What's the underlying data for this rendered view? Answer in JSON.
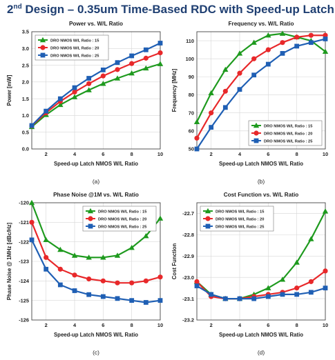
{
  "slide": {
    "title_prefix": "2",
    "title_sup": "nd",
    "title_rest": " Design – 0.35um Time-Based RDC with Speed-up Latch"
  },
  "colors": {
    "s15": "#1e9a1e",
    "s20": "#e8282a",
    "s25": "#1f5fb4"
  },
  "chart_data": [
    {
      "id": "power",
      "panel_label": "(a)",
      "type": "line",
      "title": "Power vs. W/L Ratio",
      "xlabel": "Speed-up Latch NMOS W/L Ratio",
      "ylabel": "Power [mW]",
      "xlim": [
        1,
        10
      ],
      "ylim": [
        0,
        3.5
      ],
      "xticks": [
        2,
        4,
        6,
        8,
        10
      ],
      "xtick_labels": [
        "2",
        "4",
        "6",
        "8",
        "10"
      ],
      "yticks": [
        0,
        0.5,
        1,
        1.5,
        2,
        2.5,
        3,
        3.5
      ],
      "ytick_labels": [
        "0.0",
        "0.5",
        "1.0",
        "1.5",
        "2.0",
        "2.5",
        "3.0",
        "3.5"
      ],
      "legend": "top-left",
      "grid": true,
      "x": [
        1,
        2,
        3,
        4,
        5,
        6,
        7,
        8,
        9,
        10
      ],
      "series": [
        {
          "name": "DRO NMOS W/L Ratio : 15",
          "color": "#1e9a1e",
          "marker": "triangle",
          "values": [
            0.66,
            1.02,
            1.32,
            1.55,
            1.76,
            1.95,
            2.11,
            2.26,
            2.41,
            2.54
          ]
        },
        {
          "name": "DRO NMOS W/L Ratio : 20",
          "color": "#e8282a",
          "marker": "circle",
          "values": [
            0.69,
            1.08,
            1.42,
            1.7,
            1.95,
            2.18,
            2.37,
            2.55,
            2.71,
            2.87
          ]
        },
        {
          "name": "DRO NMOS W/L Ratio : 25",
          "color": "#1f5fb4",
          "marker": "square",
          "values": [
            0.7,
            1.13,
            1.5,
            1.83,
            2.11,
            2.36,
            2.58,
            2.78,
            2.96,
            3.16
          ]
        }
      ]
    },
    {
      "id": "frequency",
      "panel_label": "(b)",
      "type": "line",
      "title": "Frequency vs. W/L Ratio",
      "xlabel": "Speed-up Latch NMOS W/L Ratio",
      "ylabel": "Frequency [MHz]",
      "xlim": [
        1,
        10
      ],
      "ylim": [
        50,
        115
      ],
      "xticks": [
        2,
        4,
        6,
        8,
        10
      ],
      "xtick_labels": [
        "2",
        "4",
        "6",
        "8",
        "10"
      ],
      "yticks": [
        50,
        60,
        70,
        80,
        90,
        100,
        110
      ],
      "ytick_labels": [
        "50",
        "60",
        "70",
        "80",
        "90",
        "100",
        "110"
      ],
      "legend": "bottom-right",
      "grid": true,
      "x": [
        1,
        2,
        3,
        4,
        5,
        6,
        7,
        8,
        9,
        10
      ],
      "series": [
        {
          "name": "DRO NMOS W/L Ratio : 15",
          "color": "#1e9a1e",
          "marker": "triangle",
          "values": [
            65,
            81,
            94,
            103,
            109,
            113,
            114,
            112,
            110,
            104
          ]
        },
        {
          "name": "DRO NMOS W/L Ratio : 20",
          "color": "#e8282a",
          "marker": "circle",
          "values": [
            56,
            70,
            82,
            92,
            100,
            105,
            109,
            112,
            113,
            113
          ]
        },
        {
          "name": "DRO NMOS W/L Ratio : 25",
          "color": "#1f5fb4",
          "marker": "square",
          "values": [
            50,
            62,
            73,
            83,
            91,
            97,
            103,
            107,
            109,
            111
          ]
        }
      ]
    },
    {
      "id": "phase_noise",
      "panel_label": "(c)",
      "type": "line",
      "title": "Phase Noise @1M vs. W/L Ratio",
      "xlabel": "Speed-up Latch NMOS W/L Ratio",
      "ylabel": "Phase Noise @ 1MHz [dBc/Hz]",
      "xlim": [
        1,
        10
      ],
      "ylim": [
        -126,
        -120
      ],
      "xticks": [
        2,
        4,
        6,
        8,
        10
      ],
      "xtick_labels": [
        "2",
        "4",
        "6",
        "8",
        "10"
      ],
      "yticks": [
        -126,
        -125,
        -124,
        -123,
        -122,
        -121,
        -120
      ],
      "ytick_labels": [
        "-126",
        "-125",
        "-124",
        "-123",
        "-122",
        "-121",
        "-120"
      ],
      "legend": "top-right",
      "grid": true,
      "x": [
        1,
        2,
        3,
        4,
        5,
        6,
        7,
        8,
        9,
        10
      ],
      "series": [
        {
          "name": "DRO NMOS W/L Ratio : 15",
          "color": "#1e9a1e",
          "marker": "triangle",
          "values": [
            -120.0,
            -121.9,
            -122.4,
            -122.7,
            -122.8,
            -122.8,
            -122.7,
            -122.3,
            -121.7,
            -120.8
          ]
        },
        {
          "name": "DRO NMOS W/L Ratio : 20",
          "color": "#e8282a",
          "marker": "circle",
          "values": [
            -121.0,
            -122.8,
            -123.4,
            -123.7,
            -123.9,
            -124.0,
            -124.1,
            -124.1,
            -124.0,
            -123.8
          ]
        },
        {
          "name": "DRO NMOS W/L Ratio : 25",
          "color": "#1f5fb4",
          "marker": "square",
          "values": [
            -121.9,
            -123.4,
            -124.2,
            -124.5,
            -124.7,
            -124.8,
            -124.9,
            -125.0,
            -125.1,
            -125.0
          ]
        }
      ]
    },
    {
      "id": "cost_function",
      "panel_label": "(d)",
      "type": "line",
      "title": "Cost Function vs. W/L Ratio",
      "xlabel": "Speed-up Latch NMOS W/L Ratio",
      "ylabel": "Cost Function",
      "xlim": [
        1,
        10
      ],
      "ylim": [
        -23.2,
        -22.65
      ],
      "xticks": [
        2,
        4,
        6,
        8,
        10
      ],
      "xtick_labels": [
        "2",
        "4",
        "6",
        "8",
        "10"
      ],
      "yticks": [
        -23.2,
        -23.1,
        -23.0,
        -22.9,
        -22.8,
        -22.7
      ],
      "ytick_labels": [
        "-23.2",
        "-23.1",
        "-23.0",
        "-22.9",
        "-22.8",
        "-22.7"
      ],
      "legend": "top-left",
      "grid": true,
      "x": [
        1,
        2,
        3,
        4,
        5,
        6,
        7,
        8,
        9,
        10
      ],
      "series": [
        {
          "name": "DRO NMOS W/L Ratio : 15",
          "color": "#1e9a1e",
          "marker": "triangle",
          "values": [
            -23.02,
            -23.08,
            -23.1,
            -23.1,
            -23.08,
            -23.05,
            -23.01,
            -22.93,
            -22.82,
            -22.69
          ]
        },
        {
          "name": "DRO NMOS W/L Ratio : 20",
          "color": "#e8282a",
          "marker": "circle",
          "values": [
            -23.02,
            -23.09,
            -23.1,
            -23.1,
            -23.09,
            -23.08,
            -23.07,
            -23.05,
            -23.02,
            -22.97
          ]
        },
        {
          "name": "DRO NMOS W/L Ratio : 25",
          "color": "#1f5fb4",
          "marker": "square",
          "values": [
            -23.04,
            -23.08,
            -23.1,
            -23.1,
            -23.1,
            -23.09,
            -23.08,
            -23.08,
            -23.07,
            -23.05
          ]
        }
      ]
    }
  ]
}
